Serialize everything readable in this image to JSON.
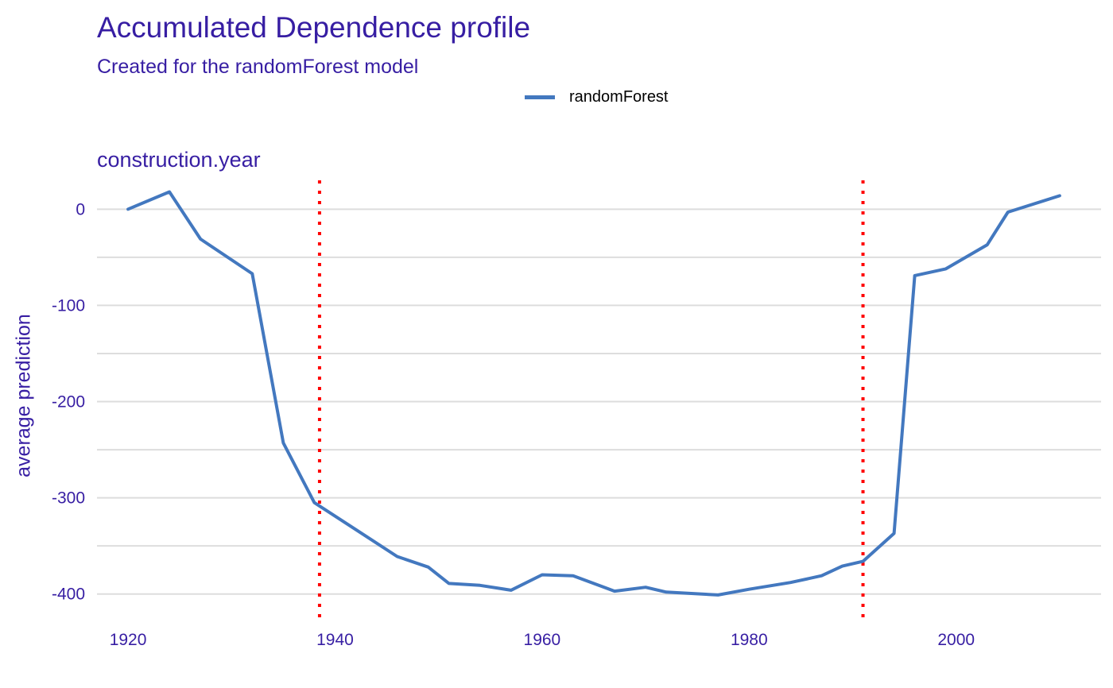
{
  "chart_data": {
    "type": "line",
    "title": "Accumulated Dependence profile",
    "subtitle": "Created for the randomForest model",
    "panel_title": "construction.year",
    "xlabel": "",
    "ylabel": "average prediction",
    "xlim": [
      1917,
      2014
    ],
    "ylim": [
      -425,
      30
    ],
    "x_ticks": [
      1920,
      1940,
      1960,
      1980,
      2000
    ],
    "y_ticks": [
      0,
      -100,
      -200,
      -300,
      -400
    ],
    "y_minor_gridlines": [
      -50,
      -150,
      -250,
      -350
    ],
    "grid": "horizontal",
    "legend_position": "top",
    "series": [
      {
        "name": "randomForest",
        "color": "#4378bf",
        "x": [
          1920,
          1924,
          1927,
          1932,
          1935,
          1938,
          1942,
          1946,
          1949,
          1951,
          1954,
          1957,
          1960,
          1963,
          1967,
          1970,
          1972,
          1977,
          1980,
          1984,
          1987,
          1989,
          1991,
          1994,
          1996,
          1999,
          2003,
          2005,
          2010
        ],
        "y": [
          0,
          18,
          -31,
          -67,
          -243,
          -305,
          -333,
          -361,
          -372,
          -389,
          -391,
          -396,
          -380,
          -381,
          -397,
          -393,
          -398,
          -401,
          -395,
          -388,
          -381,
          -371,
          -366,
          -337,
          -69,
          -62,
          -37,
          -3,
          14
        ]
      }
    ],
    "reference_lines": [
      {
        "x": 1938.5,
        "color": "#ff0000",
        "style": "dotted"
      },
      {
        "x": 1991,
        "color": "#ff0000",
        "style": "dotted"
      }
    ]
  }
}
